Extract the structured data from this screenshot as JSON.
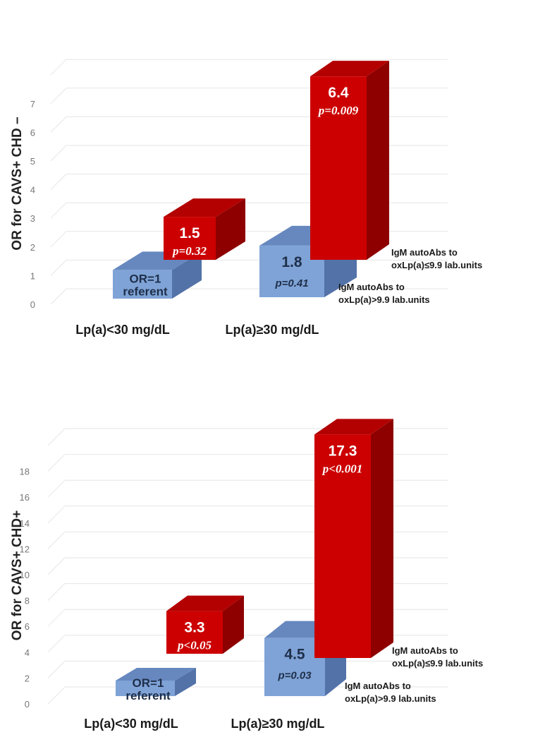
{
  "colors": {
    "red_front": "#cc0000",
    "red_side": "#8e0000",
    "red_top": "#b30000",
    "blue_front": "#7fa3d6",
    "blue_side": "#5272a8",
    "blue_top": "#6688bf",
    "grid": "#e6e6e6",
    "tick_text": "#777777"
  },
  "chart_data": [
    {
      "type": "bar",
      "ylabel": "OR for CAVS+ CHD –",
      "yticks": [
        "0",
        "1",
        "2",
        "3",
        "4",
        "5",
        "6",
        "7"
      ],
      "ylim": [
        0,
        8
      ],
      "grid": true,
      "categories": [
        "Lp(a)<30 mg/dL",
        "Lp(a)≥30 mg/dL"
      ],
      "series": [
        {
          "name": "IgM autoAbs to oxLp(a)>9.9 lab.units",
          "legend_line1": "IgM autoAbs to",
          "legend_line2": "oxLp(a)>9.9 lab.units",
          "values": [
            1,
            1.8
          ],
          "labels": [
            "OR=1",
            "1.8"
          ],
          "sublabels": [
            "referent",
            "p=0.41"
          ]
        },
        {
          "name": "IgM autoAbs to oxLp(a)≤9.9 lab.units",
          "legend_line1": "IgM autoAbs to",
          "legend_line2": "oxLp(a)≤9.9 lab.units",
          "values": [
            1.5,
            6.4
          ],
          "labels": [
            "1.5",
            "6.4"
          ],
          "sublabels": [
            "p=0.32",
            "p=0.009"
          ]
        }
      ]
    },
    {
      "type": "bar",
      "ylabel": "OR for CAVS+ CHD+",
      "yticks": [
        "0",
        "2",
        "4",
        "6",
        "8",
        "10",
        "12",
        "14",
        "16",
        "18"
      ],
      "ylim": [
        0,
        20
      ],
      "grid": true,
      "categories": [
        "Lp(a)<30 mg/dL",
        "Lp(a)≥30 mg/dL"
      ],
      "series": [
        {
          "name": "IgM autoAbs to oxLp(a)>9.9 lab.units",
          "legend_line1": "IgM autoAbs to",
          "legend_line2": "oxLp(a)>9.9 lab.units",
          "values": [
            1,
            4.5
          ],
          "labels": [
            "OR=1",
            "4.5"
          ],
          "sublabels": [
            "referent",
            "p=0.03"
          ]
        },
        {
          "name": "IgM autoAbs to oxLp(a)≤9.9 lab.units",
          "legend_line1": "IgM autoAbs to",
          "legend_line2": "oxLp(a)≤9.9 lab.units",
          "values": [
            3.3,
            17.3
          ],
          "labels": [
            "3.3",
            "17.3"
          ],
          "sublabels": [
            "p<0.05",
            "p<0.001"
          ]
        }
      ]
    }
  ]
}
